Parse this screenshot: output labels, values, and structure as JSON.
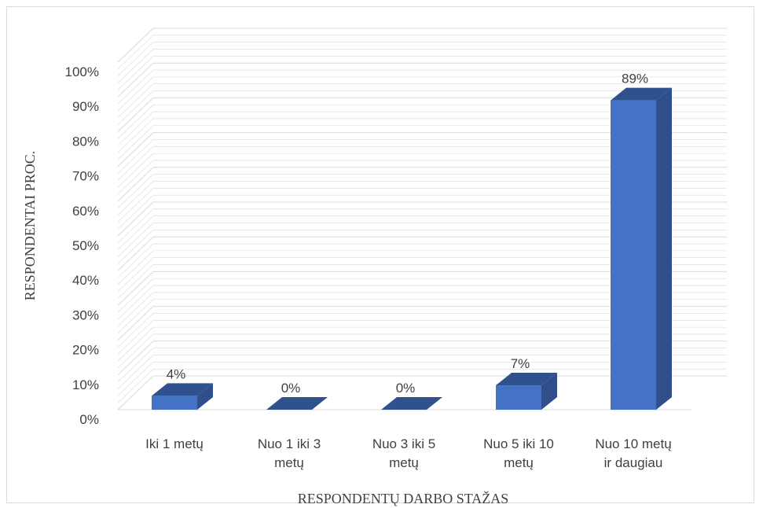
{
  "chart_data": {
    "type": "bar",
    "title": "",
    "xlabel": "RESPONDENTŲ DARBO STAŽAS",
    "ylabel": "RESPONDENTAI PROC.",
    "categories": [
      [
        "Iki 1 metų"
      ],
      [
        "Nuo 1 iki 3",
        "metų"
      ],
      [
        "Nuo 3 iki 5",
        "metų"
      ],
      [
        "Nuo 5 iki 10",
        "metų"
      ],
      [
        "Nuo 10 metų",
        "ir daugiau"
      ]
    ],
    "values": [
      4,
      0,
      0,
      7,
      89
    ],
    "data_labels": [
      "4%",
      "0%",
      "0%",
      "7%",
      "89%"
    ],
    "ylim": [
      0,
      100
    ],
    "yticks": [
      "0%",
      "10%",
      "20%",
      "30%",
      "40%",
      "50%",
      "60%",
      "70%",
      "80%",
      "90%",
      "100%"
    ],
    "grid": true,
    "three_d": true,
    "colors": {
      "bar_front": "#4472c4",
      "bar_side": "#2f4e8a",
      "bar_top": "#2f528f",
      "grid": "#d9d9d9"
    }
  }
}
